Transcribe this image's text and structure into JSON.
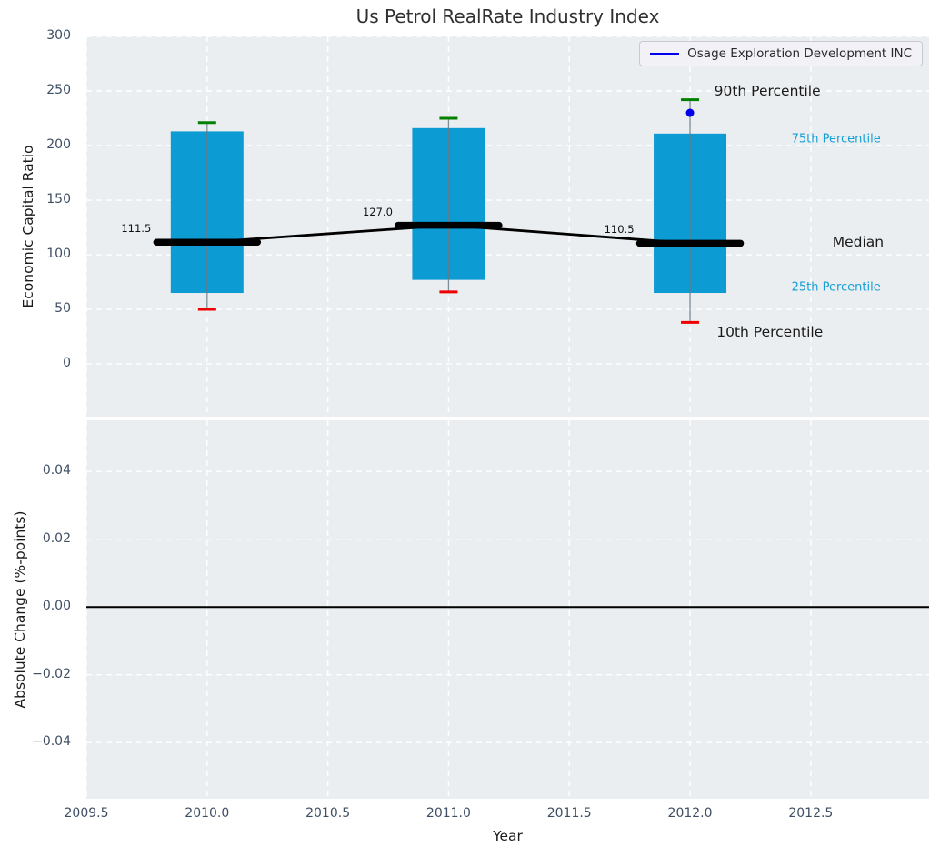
{
  "title": "Us Petrol RealRate Industry Index",
  "legend": {
    "label": "Osage Exploration Development INC",
    "line_color": "#0000ee",
    "position": "upper right"
  },
  "colors": {
    "box_fill": "#0d9bd4",
    "median_line": "#000000",
    "p90_cap": "#008000",
    "p10_cap": "#ee0000",
    "whisker": "#6a7a85",
    "company_point": "#0000ee",
    "annotation_cyan": "#149fd6",
    "annotation_black": "#1a1a1a",
    "plot_background": "#ebeef0",
    "gridline": "#ffffff",
    "tick_label": "#3e4e63",
    "zero_line": "#000000"
  },
  "chart_data": [
    {
      "type": "boxplot",
      "title": "Us Petrol RealRate Industry Index",
      "ylabel": "Economic Capital Ratio",
      "x": [
        2010,
        2011,
        2012
      ],
      "series": [
        {
          "name": "90th Percentile",
          "values": [
            221,
            225,
            242
          ]
        },
        {
          "name": "75th Percentile",
          "values": [
            213,
            216,
            211
          ]
        },
        {
          "name": "Median",
          "values": [
            111.5,
            127.0,
            110.5
          ]
        },
        {
          "name": "25th Percentile",
          "values": [
            65,
            77,
            65
          ]
        },
        {
          "name": "10th Percentile",
          "values": [
            50,
            66,
            38
          ]
        }
      ],
      "median_labels": [
        "111.5",
        "127.0",
        "110.5"
      ],
      "company_series": {
        "name": "Osage Exploration Development INC",
        "points": [
          {
            "x": 2012,
            "y": 230
          }
        ]
      },
      "yticks": [
        "300",
        "250",
        "200",
        "150",
        "100",
        "50",
        "0"
      ],
      "ytick_values": [
        300,
        250,
        200,
        150,
        100,
        50,
        0
      ],
      "ylim": [
        -48.3,
        300
      ],
      "xlim": [
        2009.5,
        2012.99
      ],
      "grid": true,
      "annotations": [
        {
          "text": "90th Percentile",
          "x": 2012.1,
          "y": 250,
          "size": "large",
          "color": "#1a1a1a"
        },
        {
          "text": "75th Percentile",
          "x": 2012.42,
          "y": 206,
          "size": "small",
          "color": "#149fd6"
        },
        {
          "text": "Median",
          "x": 2012.59,
          "y": 112,
          "size": "large",
          "color": "#1a1a1a"
        },
        {
          "text": "25th Percentile",
          "x": 2012.42,
          "y": 70,
          "size": "small",
          "color": "#149fd6"
        },
        {
          "text": "10th Percentile",
          "x": 2012.11,
          "y": 29,
          "size": "large",
          "color": "#1a1a1a"
        }
      ]
    },
    {
      "type": "line",
      "ylabel": "Absolute Change (%-points)",
      "xlabel": "Year",
      "yticks": [
        "0.04",
        "0.02",
        "0.00",
        "−0.02",
        "−0.04"
      ],
      "ytick_values": [
        0.04,
        0.02,
        0.0,
        -0.02,
        -0.04
      ],
      "xticks": [
        "2009.5",
        "2010.0",
        "2010.5",
        "2011.0",
        "2011.5",
        "2012.0",
        "2012.5"
      ],
      "xtick_values": [
        2009.5,
        2010,
        2010.5,
        2011,
        2011.5,
        2012,
        2012.5
      ],
      "ylim": [
        -0.0566,
        0.0551
      ],
      "xlim": [
        2009.5,
        2012.99
      ],
      "grid": true,
      "zero_line": 0.0,
      "values": []
    }
  ]
}
